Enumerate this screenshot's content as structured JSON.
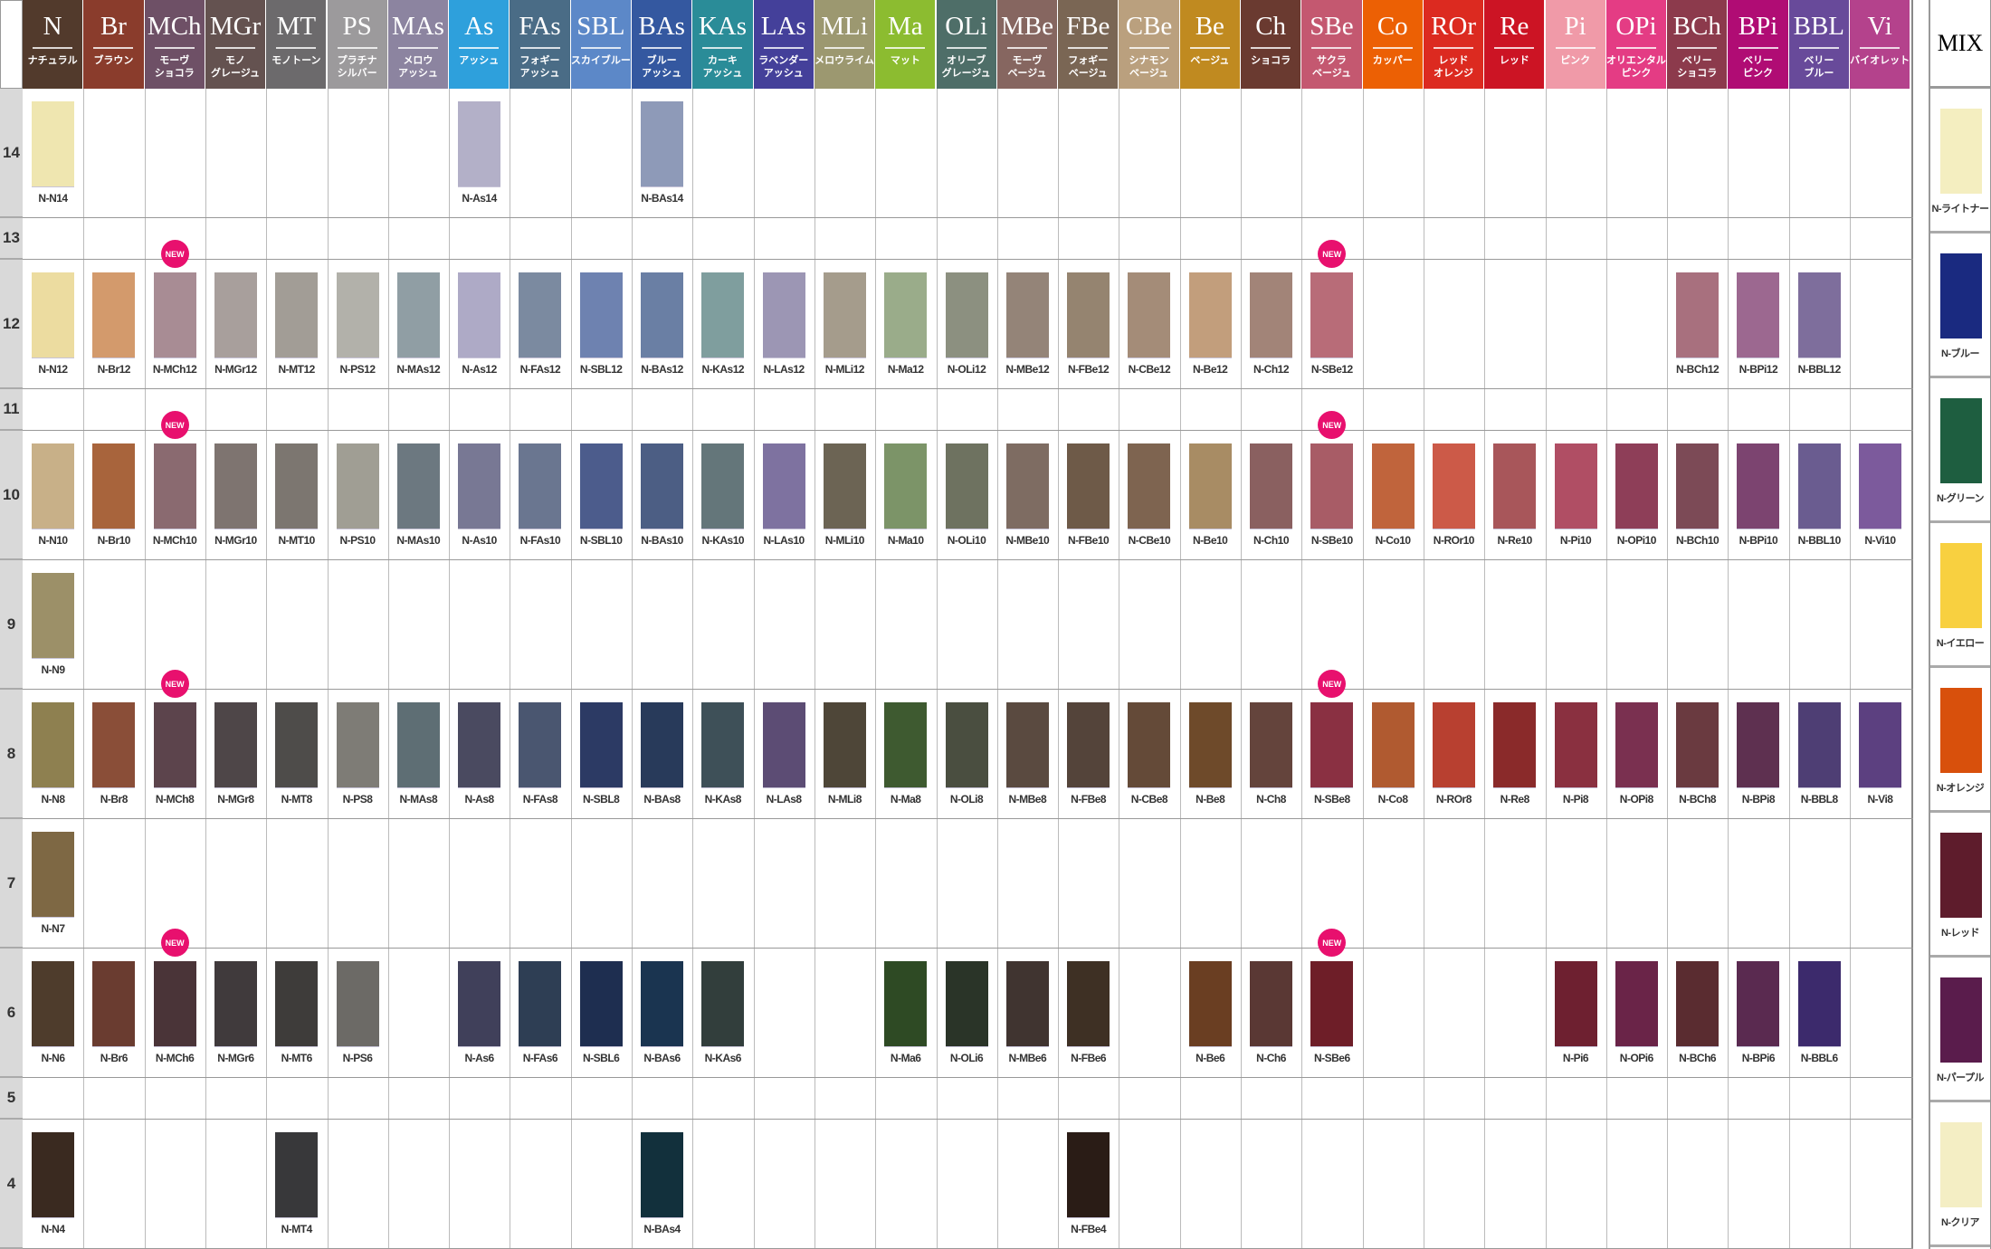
{
  "chart_data": {
    "type": "table"
  },
  "columns": [
    {
      "code": "N",
      "sub": "ナチュラル",
      "color": "#523a2c"
    },
    {
      "code": "Br",
      "sub": "ブラウン",
      "color": "#8a3c2c"
    },
    {
      "code": "MCh",
      "sub": "モーヴ\nショコラ",
      "color": "#6e5066"
    },
    {
      "code": "MGr",
      "sub": "モノ\nグレージュ",
      "color": "#645250"
    },
    {
      "code": "MT",
      "sub": "モノトーン",
      "color": "#6c6a6c"
    },
    {
      "code": "PS",
      "sub": "プラチナ\nシルバー",
      "color": "#9c9a9c"
    },
    {
      "code": "MAs",
      "sub": "メロウ\nアッシュ",
      "color": "#8c84a0"
    },
    {
      "code": "As",
      "sub": "アッシュ",
      "color": "#2ea0dc"
    },
    {
      "code": "FAs",
      "sub": "フォギー\nアッシュ",
      "color": "#4a6c86"
    },
    {
      "code": "SBL",
      "sub": "スカイブルー",
      "color": "#5c88c8"
    },
    {
      "code": "BAs",
      "sub": "ブルー\nアッシュ",
      "color": "#3458a0"
    },
    {
      "code": "KAs",
      "sub": "カーキ\nアッシュ",
      "color": "#2a8c98"
    },
    {
      "code": "LAs",
      "sub": "ラベンダー\nアッシュ",
      "color": "#44409a"
    },
    {
      "code": "MLi",
      "sub": "メロウライム",
      "color": "#9c9870"
    },
    {
      "code": "Ma",
      "sub": "マット",
      "color": "#8cbc30"
    },
    {
      "code": "OLi",
      "sub": "オリーブ\nグレージュ",
      "color": "#4e6e68"
    },
    {
      "code": "MBe",
      "sub": "モーヴ\nベージュ",
      "color": "#866660"
    },
    {
      "code": "FBe",
      "sub": "フォギー\nベージュ",
      "color": "#7a6654"
    },
    {
      "code": "CBe",
      "sub": "シナモン\nベージュ",
      "color": "#baa07e"
    },
    {
      "code": "Be",
      "sub": "ベージュ",
      "color": "#c08a20"
    },
    {
      "code": "Ch",
      "sub": "ショコラ",
      "color": "#6a3a30"
    },
    {
      "code": "SBe",
      "sub": "サクラ\nベージュ",
      "color": "#c45870"
    },
    {
      "code": "Co",
      "sub": "カッパー",
      "color": "#ec6004"
    },
    {
      "code": "ROr",
      "sub": "レッド\nオレンジ",
      "color": "#dc2a20"
    },
    {
      "code": "Re",
      "sub": "レッド",
      "color": "#cc1424"
    },
    {
      "code": "Pi",
      "sub": "ピンク",
      "color": "#f09aa8"
    },
    {
      "code": "OPi",
      "sub": "オリエンタル\nピンク",
      "color": "#e43c84"
    },
    {
      "code": "BCh",
      "sub": "ベリー\nショコラ",
      "color": "#8c3a4c"
    },
    {
      "code": "BPi",
      "sub": "ベリー\nピンク",
      "color": "#b00c74"
    },
    {
      "code": "BBL",
      "sub": "ベリー\nブルー",
      "color": "#684a9a"
    },
    {
      "code": "Vi",
      "sub": "バイオレット",
      "color": "#b4428c"
    }
  ],
  "new_badge": {
    "text": "NEW",
    "columns": [
      "MCh",
      "SBe"
    ],
    "levels": [
      "12",
      "10",
      "8",
      "6"
    ]
  },
  "levels": [
    {
      "level": "14",
      "tall": true,
      "swatches": [
        [
          "N",
          "N-N14",
          "#efe6b0"
        ],
        [
          "As",
          "N-As14",
          "#b3b0c8"
        ],
        [
          "BAs",
          "N-BAs14",
          "#8e9ab8"
        ]
      ]
    },
    {
      "level": "13",
      "tall": false,
      "swatches": []
    },
    {
      "level": "12",
      "tall": true,
      "swatches": [
        [
          "N",
          "N-N12",
          "#ecdca0"
        ],
        [
          "Br",
          "N-Br12",
          "#d39a6c"
        ],
        [
          "MCh",
          "N-MCh12",
          "#a88c94"
        ],
        [
          "MGr",
          "N-MGr12",
          "#a89f9c"
        ],
        [
          "MT",
          "N-MT12",
          "#a29d96"
        ],
        [
          "PS",
          "N-PS12",
          "#b2b1aa"
        ],
        [
          "MAs",
          "N-MAs12",
          "#909ea4"
        ],
        [
          "As",
          "N-As12",
          "#aeaac6"
        ],
        [
          "FAs",
          "N-FAs12",
          "#7b8aa0"
        ],
        [
          "SBL",
          "N-SBL12",
          "#6e82b0"
        ],
        [
          "BAs",
          "N-BAs12",
          "#6a7fa4"
        ],
        [
          "KAs",
          "N-KAs12",
          "#7f9e9e"
        ],
        [
          "LAs",
          "N-LAs12",
          "#9c96b4"
        ],
        [
          "MLi",
          "N-MLi12",
          "#a59c8c"
        ],
        [
          "Ma",
          "N-Ma12",
          "#9aac8a"
        ],
        [
          "OLi",
          "N-OLi12",
          "#8c9080"
        ],
        [
          "MBe",
          "N-MBe12",
          "#948478"
        ],
        [
          "FBe",
          "N-FBe12",
          "#958470"
        ],
        [
          "CBe",
          "N-CBe12",
          "#a48c78"
        ],
        [
          "Be",
          "N-Be12",
          "#c29e7c"
        ],
        [
          "Ch",
          "N-Ch12",
          "#a28478"
        ],
        [
          "SBe",
          "N-SBe12",
          "#b86c78"
        ],
        [
          "BCh",
          "N-BCh12",
          "#a8707e"
        ],
        [
          "BPi",
          "N-BPi12",
          "#9c6890"
        ],
        [
          "BBL",
          "N-BBL12",
          "#7e6e9c"
        ]
      ]
    },
    {
      "level": "11",
      "tall": false,
      "swatches": []
    },
    {
      "level": "10",
      "tall": true,
      "swatches": [
        [
          "N",
          "N-N10",
          "#c8b088"
        ],
        [
          "Br",
          "N-Br10",
          "#a8643c"
        ],
        [
          "MCh",
          "N-MCh10",
          "#8a6a70"
        ],
        [
          "MGr",
          "N-MGr10",
          "#7e7470"
        ],
        [
          "MT",
          "N-MT10",
          "#7c7670"
        ],
        [
          "PS",
          "N-PS10",
          "#a09e94"
        ],
        [
          "MAs",
          "N-MAs10",
          "#6c7880"
        ],
        [
          "As",
          "N-As10",
          "#787894"
        ],
        [
          "FAs",
          "N-FAs10",
          "#6a7690"
        ],
        [
          "SBL",
          "N-SBL10",
          "#4c5c8c"
        ],
        [
          "BAs",
          "N-BAs10",
          "#4c5e84"
        ],
        [
          "KAs",
          "N-KAs10",
          "#64767a"
        ],
        [
          "LAs",
          "N-LAs10",
          "#7e72a0"
        ],
        [
          "MLi",
          "N-MLi10",
          "#6c6454"
        ],
        [
          "Ma",
          "N-Ma10",
          "#7c9468"
        ],
        [
          "OLi",
          "N-OLi10",
          "#6e7260"
        ],
        [
          "MBe",
          "N-MBe10",
          "#7e6c62"
        ],
        [
          "FBe",
          "N-FBe10",
          "#6e5a48"
        ],
        [
          "CBe",
          "N-CBe10",
          "#7e6450"
        ],
        [
          "Be",
          "N-Be10",
          "#a88c64"
        ],
        [
          "Ch",
          "N-Ch10",
          "#8a6060"
        ],
        [
          "SBe",
          "N-SBe10",
          "#a85c66"
        ],
        [
          "Co",
          "N-Co10",
          "#c0643c"
        ],
        [
          "ROr",
          "N-ROr10",
          "#cc5a48"
        ],
        [
          "Re",
          "N-Re10",
          "#a8565a"
        ],
        [
          "Pi",
          "N-Pi10",
          "#b04e64"
        ],
        [
          "OPi",
          "N-OPi10",
          "#8e3e58"
        ],
        [
          "BCh",
          "N-BCh10",
          "#7c4a56"
        ],
        [
          "BPi",
          "N-BPi10",
          "#7c4470"
        ],
        [
          "BBL",
          "N-BBL10",
          "#6a5c90"
        ],
        [
          "Vi",
          "N-Vi10",
          "#7c5a9c"
        ]
      ]
    },
    {
      "level": "9",
      "tall": true,
      "swatches": [
        [
          "N",
          "N-N9",
          "#9c9068"
        ]
      ]
    },
    {
      "level": "8",
      "tall": true,
      "swatches": [
        [
          "N",
          "N-N8",
          "#8e8050"
        ],
        [
          "Br",
          "N-Br8",
          "#8a4e38"
        ],
        [
          "MCh",
          "N-MCh8",
          "#5c444c"
        ],
        [
          "MGr",
          "N-MGr8",
          "#4e4648"
        ],
        [
          "MT",
          "N-MT8",
          "#4e4c4a"
        ],
        [
          "PS",
          "N-PS8",
          "#7e7c76"
        ],
        [
          "MAs",
          "N-MAs8",
          "#5e6e74"
        ],
        [
          "As",
          "N-As8",
          "#4a4a60"
        ],
        [
          "FAs",
          "N-FAs8",
          "#4a5670"
        ],
        [
          "SBL",
          "N-SBL8",
          "#2c3a64"
        ],
        [
          "BAs",
          "N-BAs8",
          "#283a5a"
        ],
        [
          "KAs",
          "N-KAs8",
          "#3e5058"
        ],
        [
          "LAs",
          "N-LAs8",
          "#5c4c74"
        ],
        [
          "MLi",
          "N-MLi8",
          "#4e4638"
        ],
        [
          "Ma",
          "N-Ma8",
          "#3e5a30"
        ],
        [
          "OLi",
          "N-OLi8",
          "#4a4e40"
        ],
        [
          "MBe",
          "N-MBe8",
          "#5a4a40"
        ],
        [
          "FBe",
          "N-FBe8",
          "#54443a"
        ],
        [
          "CBe",
          "N-CBe8",
          "#644a38"
        ],
        [
          "Be",
          "N-Be8",
          "#6e4a2a"
        ],
        [
          "Ch",
          "N-Ch8",
          "#64443c"
        ],
        [
          "SBe",
          "N-SBe8",
          "#8a3042"
        ],
        [
          "Co",
          "N-Co8",
          "#b05a30"
        ],
        [
          "ROr",
          "N-ROr8",
          "#b84030"
        ],
        [
          "Re",
          "N-Re8",
          "#8a2a2a"
        ],
        [
          "Pi",
          "N-Pi8",
          "#8a3040"
        ],
        [
          "OPi",
          "N-OPi8",
          "#7a3050"
        ],
        [
          "BCh",
          "N-BCh8",
          "#6a3a40"
        ],
        [
          "BPi",
          "N-BPi8",
          "#5e3050"
        ],
        [
          "BBL",
          "N-BBL8",
          "#4e3e74"
        ],
        [
          "Vi",
          "N-Vi8",
          "#5c4080"
        ]
      ]
    },
    {
      "level": "7",
      "tall": true,
      "swatches": [
        [
          "N",
          "N-N7",
          "#7e6844"
        ]
      ]
    },
    {
      "level": "6",
      "tall": true,
      "swatches": [
        [
          "N",
          "N-N6",
          "#4e3c2c"
        ],
        [
          "Br",
          "N-Br6",
          "#6a3c30"
        ],
        [
          "MCh",
          "N-MCh6",
          "#4a3438"
        ],
        [
          "MGr",
          "N-MGr6",
          "#403a3c"
        ],
        [
          "MT",
          "N-MT6",
          "#3e3c3a"
        ],
        [
          "PS",
          "N-PS6",
          "#6c6a66"
        ],
        [
          "As",
          "N-As6",
          "#40405a"
        ],
        [
          "FAs",
          "N-FAs6",
          "#2e3e54"
        ],
        [
          "SBL",
          "N-SBL6",
          "#1e2e50"
        ],
        [
          "BAs",
          "N-BAs6",
          "#1a3450"
        ],
        [
          "KAs",
          "N-KAs6",
          "#323e3c"
        ],
        [
          "Ma",
          "N-Ma6",
          "#2e4a24"
        ],
        [
          "OLi",
          "N-OLi6",
          "#2a3428"
        ],
        [
          "MBe",
          "N-MBe6",
          "#403430"
        ],
        [
          "FBe",
          "N-FBe6",
          "#3e3024"
        ],
        [
          "Be",
          "N-Be6",
          "#6a3e22"
        ],
        [
          "Ch",
          "N-Ch6",
          "#5a3834"
        ],
        [
          "SBe",
          "N-SBe6",
          "#6e1e28"
        ],
        [
          "Pi",
          "N-Pi6",
          "#6e2030"
        ],
        [
          "OPi",
          "N-OPi6",
          "#6a2448"
        ],
        [
          "BCh",
          "N-BCh6",
          "#5a2c30"
        ],
        [
          "BPi",
          "N-BPi6",
          "#5a2a50"
        ],
        [
          "BBL",
          "N-BBL6",
          "#3c2a6c"
        ]
      ]
    },
    {
      "level": "5",
      "tall": false,
      "swatches": []
    },
    {
      "level": "4",
      "tall": true,
      "swatches": [
        [
          "N",
          "N-N4",
          "#3a2a20"
        ],
        [
          "MT",
          "N-MT4",
          "#38383a"
        ],
        [
          "BAs",
          "N-BAs4",
          "#12303c"
        ],
        [
          "FBe",
          "N-FBe4",
          "#2a1c16"
        ]
      ]
    }
  ],
  "mix": {
    "title": "MIX",
    "items": [
      {
        "label": "N-ライトナー",
        "color": "#f4eec0"
      },
      {
        "label": "N-ブルー",
        "color": "#1a2a80"
      },
      {
        "label": "N-グリーン",
        "color": "#1e5e40"
      },
      {
        "label": "N-イエロー",
        "color": "#f8d040"
      },
      {
        "label": "N-オレンジ",
        "color": "#d8500c"
      },
      {
        "label": "N-レッド",
        "color": "#5e1c2c"
      },
      {
        "label": "N-パープル",
        "color": "#5a1c4c"
      },
      {
        "label": "N-クリア",
        "color": "#f4eec4"
      }
    ]
  }
}
